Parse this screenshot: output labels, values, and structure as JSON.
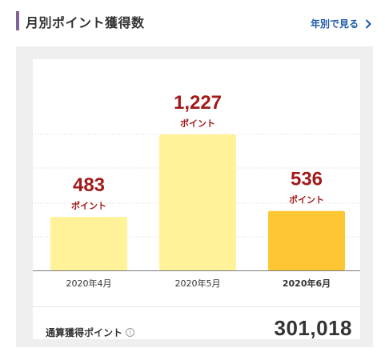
{
  "header": {
    "title": "月別ポイント獲得数",
    "yearly_link": "年別で見る",
    "chevron_icon": "chevron-right-icon"
  },
  "chart_data": {
    "type": "bar",
    "categories": [
      "2020年4月",
      "2020年5月",
      "2020年6月"
    ],
    "values": [
      483,
      1227,
      536
    ],
    "value_labels": [
      "483",
      "1,227",
      "536"
    ],
    "unit": "ポイント",
    "selected_index": 2,
    "ylim": [
      0,
      1227
    ],
    "grid": true,
    "colors": {
      "bar": "#fff299",
      "bar_selected": "#ffc633",
      "value_text": "#a31a1a",
      "grid": "#d8d8d8",
      "axis": "#7a7a7a"
    }
  },
  "total": {
    "label": "通算獲得ポイント",
    "info_icon": "info-icon",
    "value": "301,018"
  }
}
